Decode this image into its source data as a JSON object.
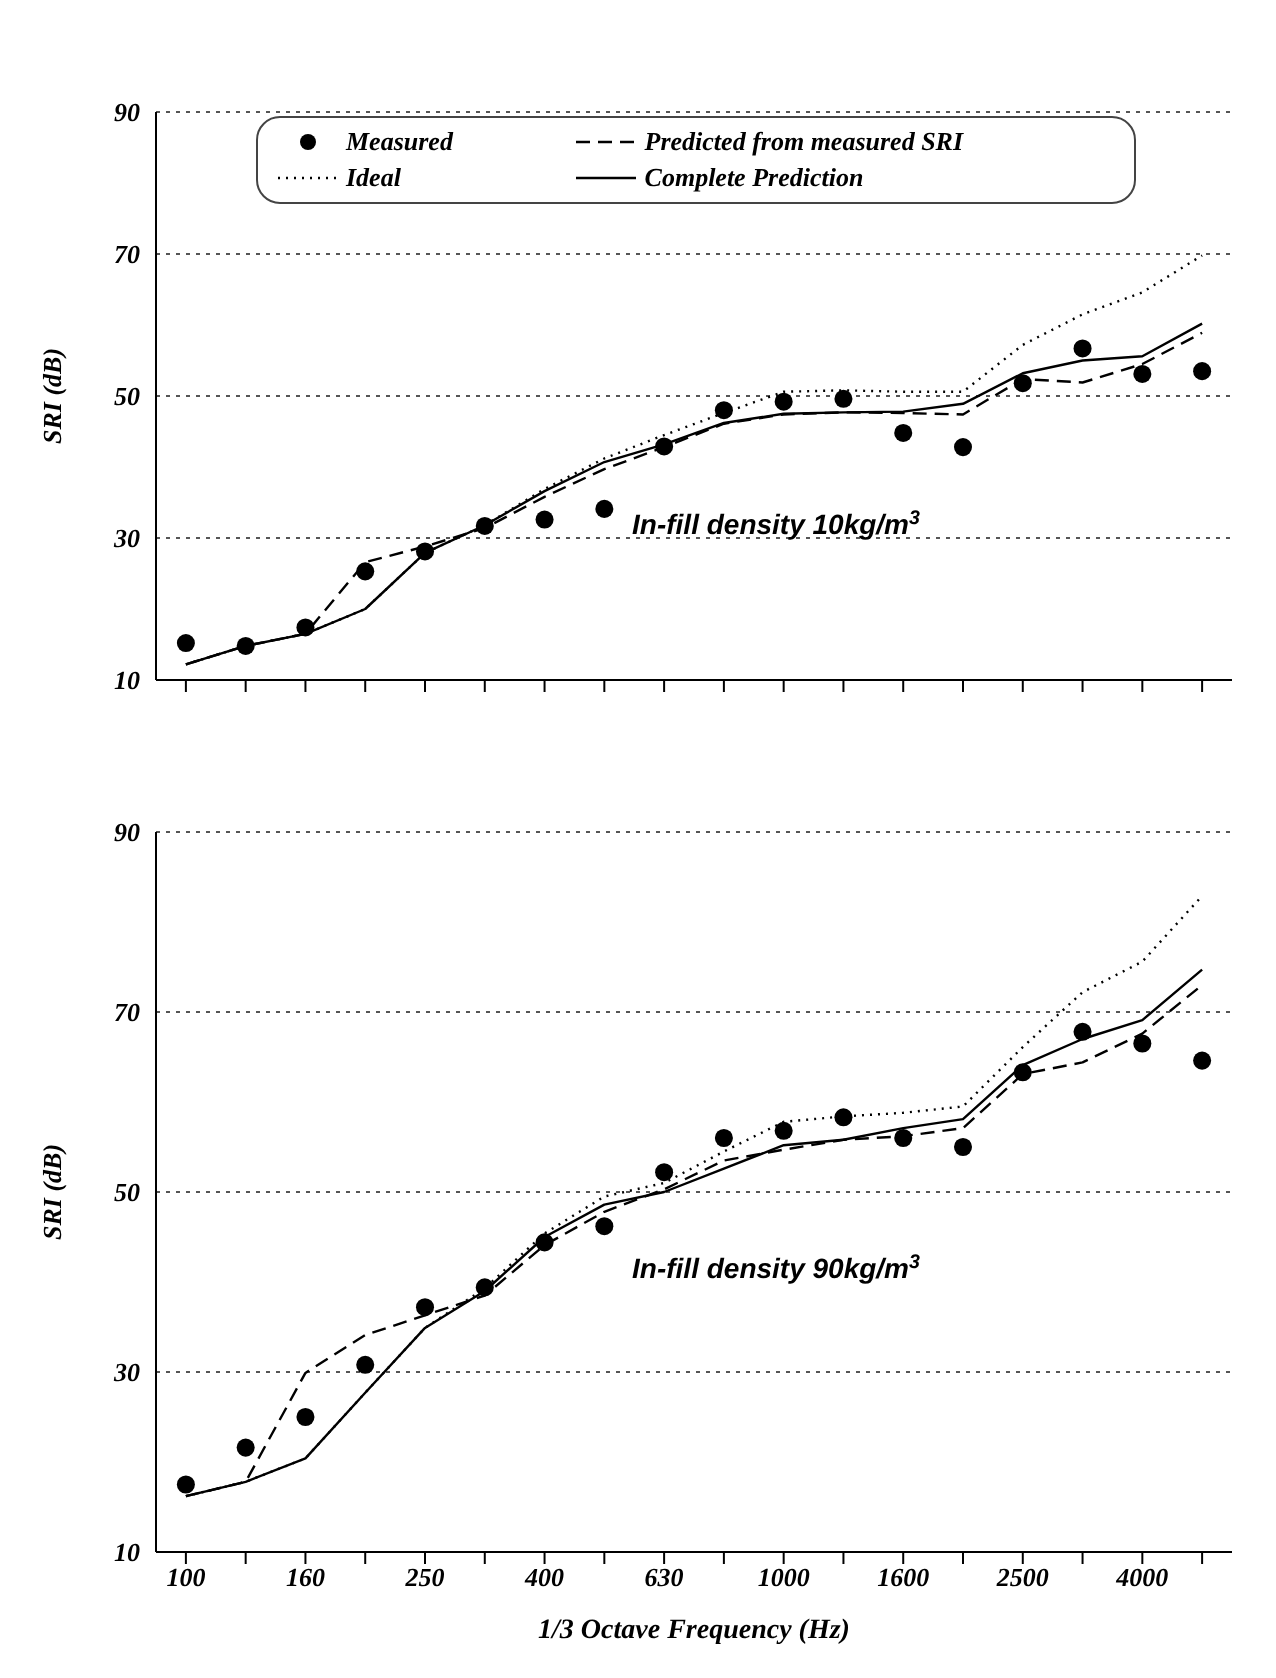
{
  "chart_data": [
    {
      "type": "line",
      "ylabel": "SRI (dB)",
      "annotations": [
        "In-fill density 10kg/m$^{3}$"
      ],
      "categories": [
        "100",
        null,
        "160",
        null,
        "250",
        null,
        "400",
        null,
        "630",
        null,
        "1000",
        null,
        "1600",
        null,
        "2500",
        null,
        "4000",
        null
      ],
      "ylim": [
        10,
        90
      ],
      "yticks": [
        10,
        30,
        50,
        70,
        90
      ],
      "grid": "y",
      "legend": "top",
      "tick_labels": "y",
      "series": [
        {
          "name": "Measured",
          "type": "scatter",
          "marker": "circle",
          "color": "#000000",
          "values": [
            15.2,
            14.8,
            17.4,
            25.3,
            28.1,
            31.7,
            32.6,
            34.1,
            42.9,
            48,
            49.2,
            49.6,
            44.8,
            42.8,
            51.8,
            56.7,
            53.1,
            53.5
          ]
        },
        {
          "name": "Predicted from measured SRI",
          "marker": "none",
          "line_style": "dashed",
          "color": "#000000",
          "values": [
            12.2,
            14.8,
            16.5,
            26.6,
            28.8,
            31.4,
            35.8,
            39.7,
            42.8,
            46.1,
            47.4,
            47.7,
            47.6,
            47.4,
            52.4,
            51.9,
            54.5,
            58.9
          ]
        },
        {
          "name": "Ideal",
          "marker": "none",
          "line_style": "dotted",
          "color": "#000000",
          "values": [
            12.2,
            14.8,
            16.5,
            20,
            27.9,
            31.8,
            36.9,
            41.2,
            44.5,
            47.6,
            50.6,
            50.8,
            50.6,
            50.6,
            57.2,
            61.5,
            64.6,
            69.8
          ]
        },
        {
          "name": "Complete Prediction",
          "marker": "none",
          "line_style": "solid",
          "color": "#000000",
          "values": [
            12.2,
            14.8,
            16.5,
            20,
            27.9,
            31.8,
            36.6,
            40.7,
            43.2,
            46.2,
            47.5,
            47.7,
            47.8,
            48.9,
            53.2,
            55,
            55.6,
            60.2
          ]
        }
      ]
    },
    {
      "type": "line",
      "xlabel": "1/3 Octave Frequency (Hz)",
      "ylabel": "SRI (dB)",
      "annotations": [
        "In-fill density 90kg/m$^{3}$"
      ],
      "categories": [
        "100",
        null,
        "160",
        null,
        "250",
        null,
        "400",
        null,
        "630",
        null,
        "1000",
        null,
        "1600",
        null,
        "2500",
        null,
        "4000",
        null
      ],
      "ylim": [
        10,
        90
      ],
      "yticks": [
        10,
        30,
        50,
        70,
        90
      ],
      "grid": "y",
      "series": [
        {
          "type": "scatter",
          "marker": "circle",
          "color": "#000000",
          "values": [
            17.5,
            21.6,
            25,
            30.8,
            37.2,
            39.4,
            44.4,
            46.2,
            52.2,
            56,
            56.8,
            58.3,
            56,
            55,
            63.3,
            67.8,
            66.5,
            64.6
          ]
        },
        {
          "marker": "none",
          "line_style": "dashed",
          "color": "#000000",
          "values": [
            16.2,
            17.8,
            29.9,
            34.1,
            36.3,
            38.5,
            44.1,
            47.8,
            50.3,
            53.5,
            54.7,
            55.8,
            56.2,
            57.1,
            63.1,
            64.4,
            67.6,
            73
          ]
        },
        {
          "marker": "none",
          "line_style": "dotted",
          "color": "#000000",
          "values": [
            16.2,
            17.8,
            20.4,
            27.7,
            34.9,
            39.3,
            45.4,
            49.5,
            51,
            54.5,
            57.8,
            58.4,
            58.8,
            59.5,
            66.1,
            72.2,
            75.6,
            82.9
          ]
        },
        {
          "marker": "none",
          "line_style": "solid",
          "color": "#000000",
          "values": [
            16.2,
            17.8,
            20.4,
            27.7,
            34.9,
            39,
            45,
            48.6,
            50,
            52.6,
            55.2,
            55.8,
            57.1,
            58.1,
            64.1,
            67,
            69.1,
            74.7
          ]
        }
      ]
    }
  ]
}
